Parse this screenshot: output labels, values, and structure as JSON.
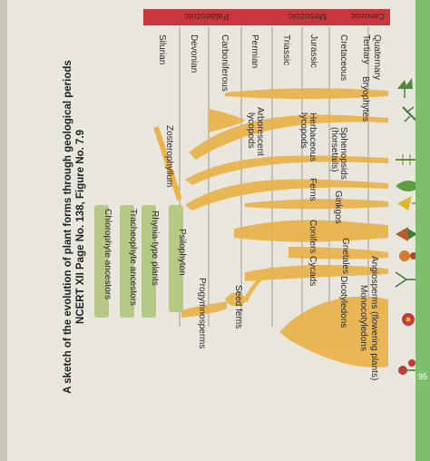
{
  "eras": [
    {
      "id": "paleozoic",
      "label": "Palaeozoic",
      "color": "#c8373d"
    },
    {
      "id": "mesozoic",
      "label": "Mesozoic",
      "color": "#c8373d"
    },
    {
      "id": "cenozoic",
      "label": "Cenozoic",
      "color": "#c8373d"
    }
  ],
  "periods": [
    {
      "id": "quaternary",
      "label": "Quaternary"
    },
    {
      "id": "tertiary",
      "label": "Tertiary"
    },
    {
      "id": "cretaceous",
      "label": "Cretaceous"
    },
    {
      "id": "jurassic",
      "label": "Jurassic"
    },
    {
      "id": "triassic",
      "label": "Triassic"
    },
    {
      "id": "permian",
      "label": "Permian"
    },
    {
      "id": "carboniferous",
      "label": "Carboniferous"
    },
    {
      "id": "devonian",
      "label": "Devonian"
    },
    {
      "id": "silurian",
      "label": "Silurian"
    }
  ],
  "groups": {
    "bryophytes": "Bryophytes",
    "arborescent_lycopods_1": "Arborescent",
    "arborescent_lycopods_2": "lycopods",
    "herbaceous_lycopods_1": "Herbaceous",
    "herbaceous_lycopods_2": "lycopods",
    "sphenopsids_1": "Sphenopsids",
    "sphenopsids_2": "(horsetails)",
    "zosterophyllum": "Zosterophyllum",
    "ferns": "Ferns",
    "ginkgos": "Ginkgos",
    "conifers": "Conifers",
    "gnetales": "Gnetales",
    "cycads": "Cycads",
    "angiosperms": "Angiosperms (flowering plants)",
    "monocotyledons": "Monocotyledons",
    "dicotyledons": "Dicotyledons",
    "seed_ferns": "Seed ferns",
    "progymnosperms": "Progymnosperms",
    "psilophyton": "Psilophyton",
    "rhynia": "Rhynia-type plants",
    "tracheophyte": "Tracheophyte ancestors",
    "chlorophyte": "Chlorophyte ancestors"
  },
  "caption": {
    "line1": "A sketch of the evolution of plant forms through geological periods",
    "line2": "NCERT XII Page No. 138, Figure No. 7.9"
  },
  "page_number": "95",
  "colors": {
    "branch": "#e9b24a",
    "green_box": "#b5c985",
    "era_header": "#c8373d",
    "page_bg": "#e9e6dd"
  }
}
